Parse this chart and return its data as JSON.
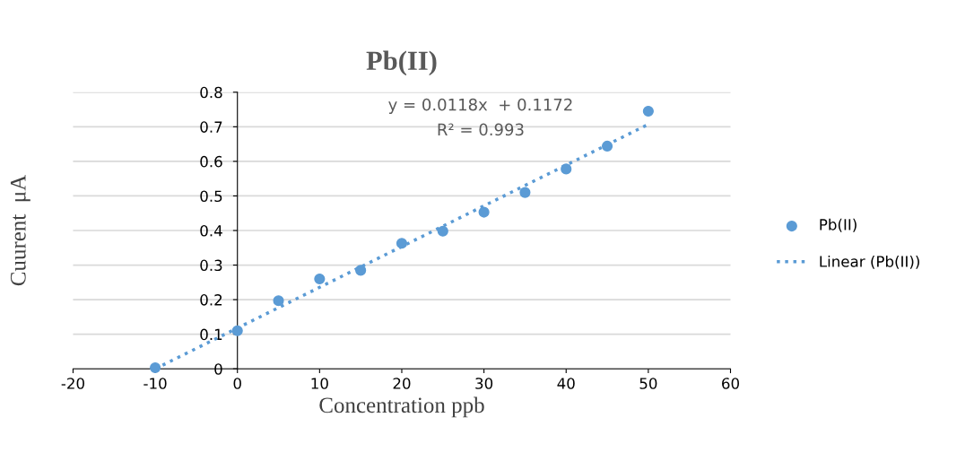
{
  "chart_data": {
    "type": "scatter",
    "title": "Pb(II)",
    "xlabel": "Concentration ppb",
    "ylabel": "Cuurent  μA",
    "annotations": [
      "y = 0.0118x  + 0.1172",
      "R² = 0.993"
    ],
    "xlim": [
      -20,
      60
    ],
    "xticks": [
      -20,
      -10,
      0,
      10,
      20,
      30,
      40,
      50,
      60
    ],
    "ylim": [
      0,
      0.8
    ],
    "yticks": [
      0,
      0.1,
      0.2,
      0.3,
      0.4,
      0.5,
      0.6,
      0.7,
      0.8
    ],
    "grid": "y",
    "legend": "right",
    "series": [
      {
        "name": "Pb(II)",
        "marker": "circle",
        "color": "#5b9bd5",
        "x": [
          -10,
          0,
          5,
          10,
          15,
          20,
          25,
          30,
          35,
          40,
          45,
          50
        ],
        "values": [
          0.003,
          0.11,
          0.197,
          0.26,
          0.285,
          0.363,
          0.398,
          0.453,
          0.51,
          0.578,
          0.644,
          0.745
        ]
      },
      {
        "name": "Linear (Pb(II))",
        "type": "line",
        "line_style": "dotted",
        "color": "#5b9bd5",
        "x": [
          -10,
          50
        ],
        "values": [
          0.0,
          0.707
        ]
      }
    ]
  }
}
